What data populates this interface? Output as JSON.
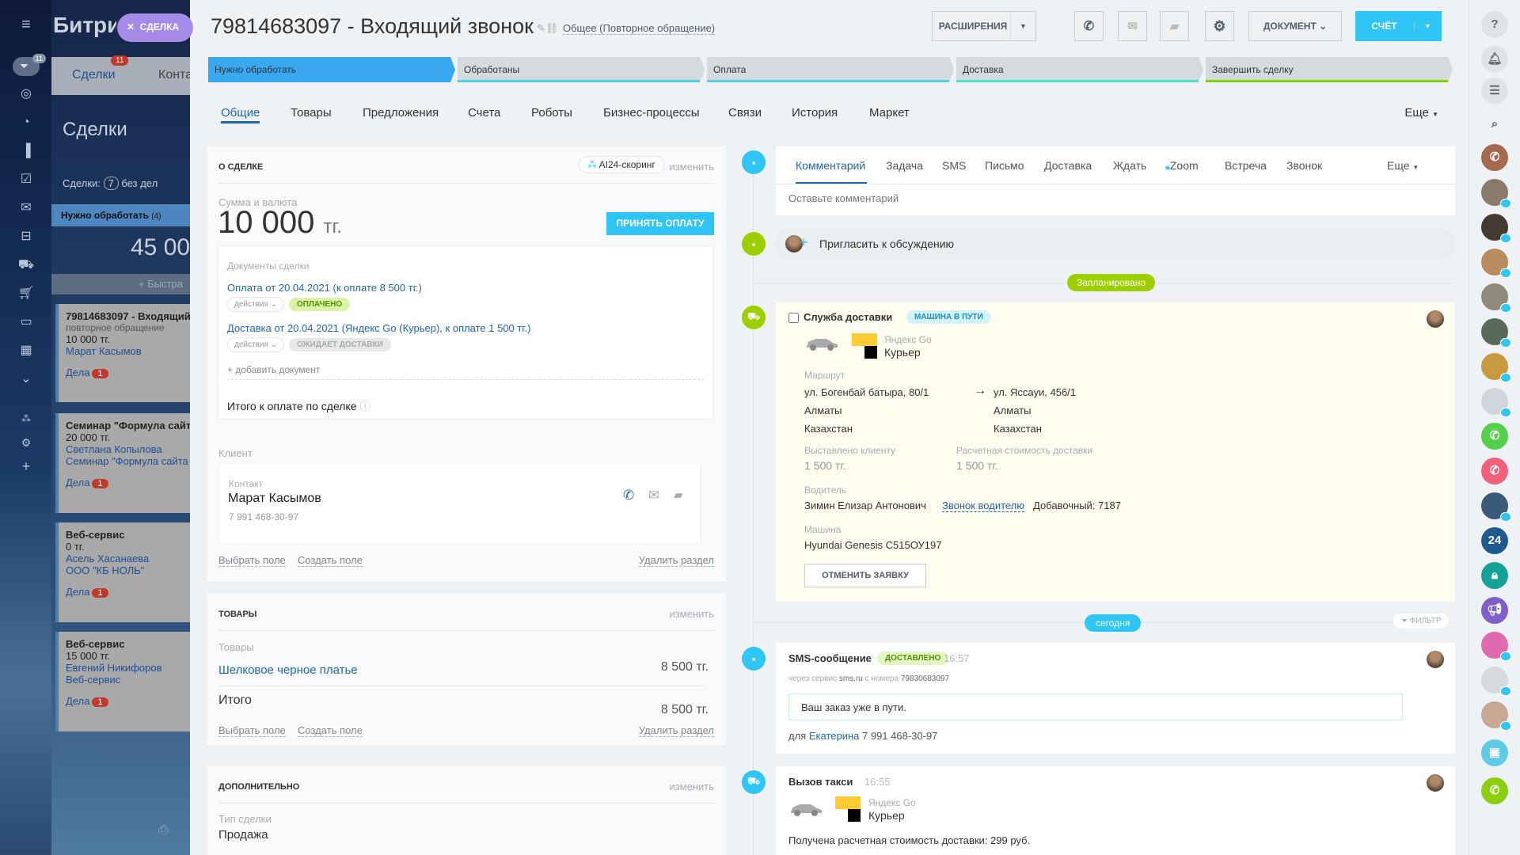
{
  "left_nav": {
    "filter_badge": "11",
    "icons": [
      "menu-icon",
      "filter-icon",
      "target-icon",
      "clock-icon",
      "chart-icon",
      "tasks-icon",
      "mail-icon",
      "robot-icon",
      "delivery-icon",
      "cart-icon",
      "calendar-icon",
      "apps-icon",
      "more-icon",
      "sitemap-icon",
      "gear-icon",
      "plus-icon",
      "printer-icon"
    ]
  },
  "background_panel": {
    "brand": "Битрикс",
    "slider_label": "СДЕЛКА",
    "tabs": [
      {
        "label": "Сделки",
        "badge": "11"
      },
      {
        "label": "Конта"
      }
    ],
    "title": "Сделки",
    "summary_prefix": "Сделки:",
    "summary_count": "7",
    "summary_suffix": "без дел",
    "stage": "Нужно обработать",
    "stage_count": "(4)",
    "stage_sum": "45 00",
    "quick_add": "+ Быстра",
    "cards": [
      {
        "title": "79814683097 - Входящий",
        "sub": "повторное обращение",
        "sum": "10 000 тг.",
        "links": [
          "Марат Касымов"
        ],
        "deals": "Дела",
        "badge": "1"
      },
      {
        "title": "Семинар \"Формула сайт",
        "sum": "20 000 тг.",
        "links": [
          "Светлана Копылова",
          "Семинар \"Формула сайта"
        ],
        "deals": "Дела",
        "badge": "1"
      },
      {
        "title": "Веб-сервис",
        "sum": "0 тг.",
        "links": [
          "Асель Хасанаева",
          "ООО \"КБ НОЛЬ\""
        ],
        "deals": "Дела",
        "badge": "1"
      },
      {
        "title": "Веб-сервис",
        "sum": "15 000 тг.",
        "links": [
          "Евгений Никифоров",
          "Веб-сервис"
        ],
        "deals": "Дела",
        "badge": "1"
      }
    ]
  },
  "header": {
    "title": "79814683097 - Входящий звонок",
    "category": "Общее (Повторное обращение)",
    "extensions": "РАСШИРЕНИЯ",
    "document": "ДОКУМЕНТ",
    "invoice": "СЧЁТ"
  },
  "stages": [
    {
      "label": "Нужно обработать",
      "color": "#39a8ef",
      "active": true
    },
    {
      "label": "Обработаны",
      "color": "#47d1e2"
    },
    {
      "label": "Оплата",
      "color": "#55d0e0"
    },
    {
      "label": "Доставка",
      "color": "#47e4c2"
    },
    {
      "label": "Завершить сделку",
      "color": "#7bd500"
    }
  ],
  "tabs": [
    "Общие",
    "Товары",
    "Предложения",
    "Счета",
    "Роботы",
    "Бизнес-процессы",
    "Связи",
    "История",
    "Маркет"
  ],
  "tabs_more": "Еще",
  "about": {
    "title": "О СДЕЛКЕ",
    "scoring": "AI24-скоринг",
    "edit": "изменить",
    "amount_label": "Сумма и валюта",
    "amount": "10 000",
    "currency": "тг.",
    "accept_payment": "ПРИНЯТЬ ОПЛАТУ",
    "docs_label": "Документы сделки",
    "docs": [
      {
        "title": "Оплата от 20.04.2021 (к оплате  8 500 тг.)",
        "actions": "действия",
        "status": "ОПЛАЧЕНО"
      },
      {
        "title": "Доставка от 20.04.2021 (Яндекс Go (Курьер), к оплате 1 500 тг.)",
        "actions": "действия",
        "status": "ОЖИДАЕТ ДОСТАВКИ"
      }
    ],
    "add_doc": "+ добавить документ",
    "total_label": "Итого к оплате по сделке",
    "client_label": "Клиент",
    "contact_label": "Контакт",
    "contact_name": "Марат Касымов",
    "contact_phone": "7 991 468-30-97",
    "select_field": "Выбрать поле",
    "create_field": "Создать поле",
    "delete_section": "Удалить раздел"
  },
  "products": {
    "title": "ТОВАРЫ",
    "edit": "изменить",
    "label": "Товары",
    "item": "Шелковое черное платье",
    "item_price": "8 500 тг.",
    "total_label": "Итого",
    "total": "8 500 тг.",
    "select_field": "Выбрать поле",
    "create_field": "Создать поле",
    "delete_section": "Удалить раздел"
  },
  "extra": {
    "title": "ДОПОЛНИТЕЛЬНО",
    "edit": "изменить",
    "type_label": "Тип сделки",
    "type_value": "Продажа"
  },
  "timeline": {
    "editor_tabs": [
      "Комментарий",
      "Задача",
      "SMS",
      "Письмо",
      "Доставка",
      "Ждать",
      "Zoom",
      "Встреча",
      "Звонок"
    ],
    "editor_more": "Еще",
    "comment_placeholder": "Оставьте комментарий",
    "invite": "Пригласить к обсуждению",
    "planned": "Запланировано",
    "today": "сегодня",
    "filter": "ФИЛЬТР",
    "delivery": {
      "title": "Служба доставки",
      "status": "МАШИНА В ПУТИ",
      "provider": "Яндекс Go",
      "service": "Курьер",
      "route_label": "Маршрут",
      "from": [
        "ул. Богенбай батыра, 80/1",
        "Алматы",
        "Казахстан"
      ],
      "to": [
        "ул. Яссауи, 456/1",
        "Алматы",
        "Казахстан"
      ],
      "billed_label": "Выставлено клиенту",
      "billed": "1 500 тг.",
      "est_label": "Расчетная стоимость доставки",
      "est": "1 500 тг.",
      "driver_label": "Водитель",
      "driver": "Зимин Елизар Антонович",
      "call_driver": "Звонок водителю",
      "ext": "Добавочный: 7187",
      "car_label": "Машина",
      "car": "Hyundai Genesis С515ОУ197",
      "cancel": "ОТМЕНИТЬ ЗАЯВКУ"
    },
    "sms": {
      "title": "SMS-сообщение",
      "status": "ДОСТАВЛЕНО",
      "time": "16:57",
      "via_prefix": "через сервис",
      "via_service": "sms.ru",
      "via_mid": "с номера",
      "via_number": "79830683097",
      "text": "Ваш заказ уже в пути.",
      "for": "для",
      "recipient": "Екатерина",
      "recipient_phone": "7 991 468-30-97"
    },
    "taxi": {
      "title": "Вызов такси",
      "time": "16:55",
      "provider": "Яндекс Go",
      "service": "Курьер",
      "text": "Получена расчетная стоимость доставки: 299 руб."
    }
  },
  "right_bar": {
    "counter": "24",
    "colors": {
      "accent": "#2fc6f6",
      "green": "#9dcf00"
    }
  }
}
